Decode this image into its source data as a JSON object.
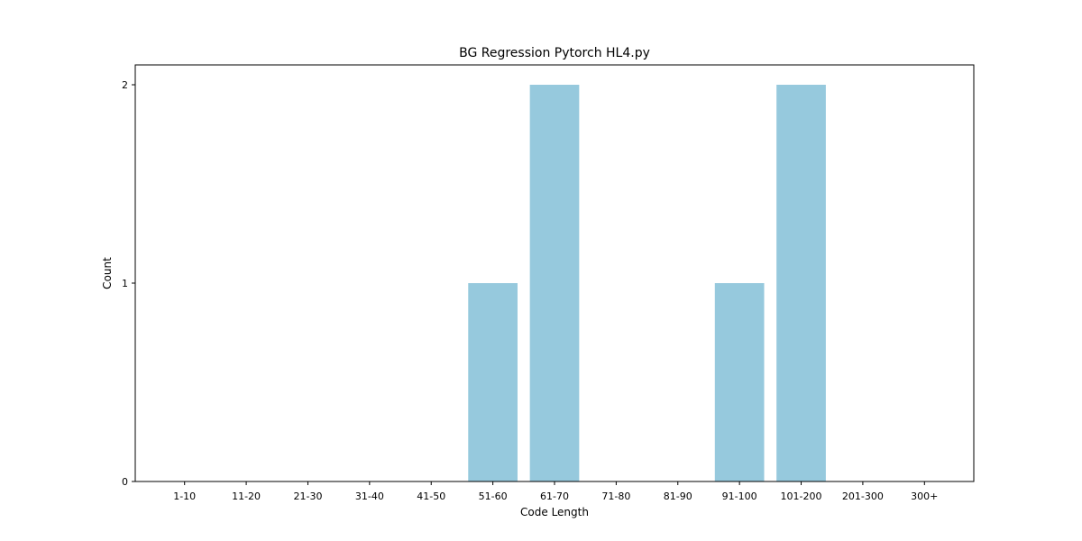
{
  "chart_data": {
    "type": "bar",
    "title": "BG Regression Pytorch HL4.py",
    "xlabel": "Code Length",
    "ylabel": "Count",
    "categories": [
      "1-10",
      "11-20",
      "21-30",
      "31-40",
      "41-50",
      "51-60",
      "61-70",
      "71-80",
      "81-90",
      "91-100",
      "101-200",
      "201-300",
      "300+"
    ],
    "values": [
      0,
      0,
      0,
      0,
      0,
      1,
      2,
      0,
      0,
      1,
      2,
      0,
      0
    ],
    "ylim": [
      0,
      2.1
    ],
    "yticks": [
      "0",
      "1",
      "2"
    ],
    "grid": false,
    "bar_color": "#96c9dd"
  }
}
